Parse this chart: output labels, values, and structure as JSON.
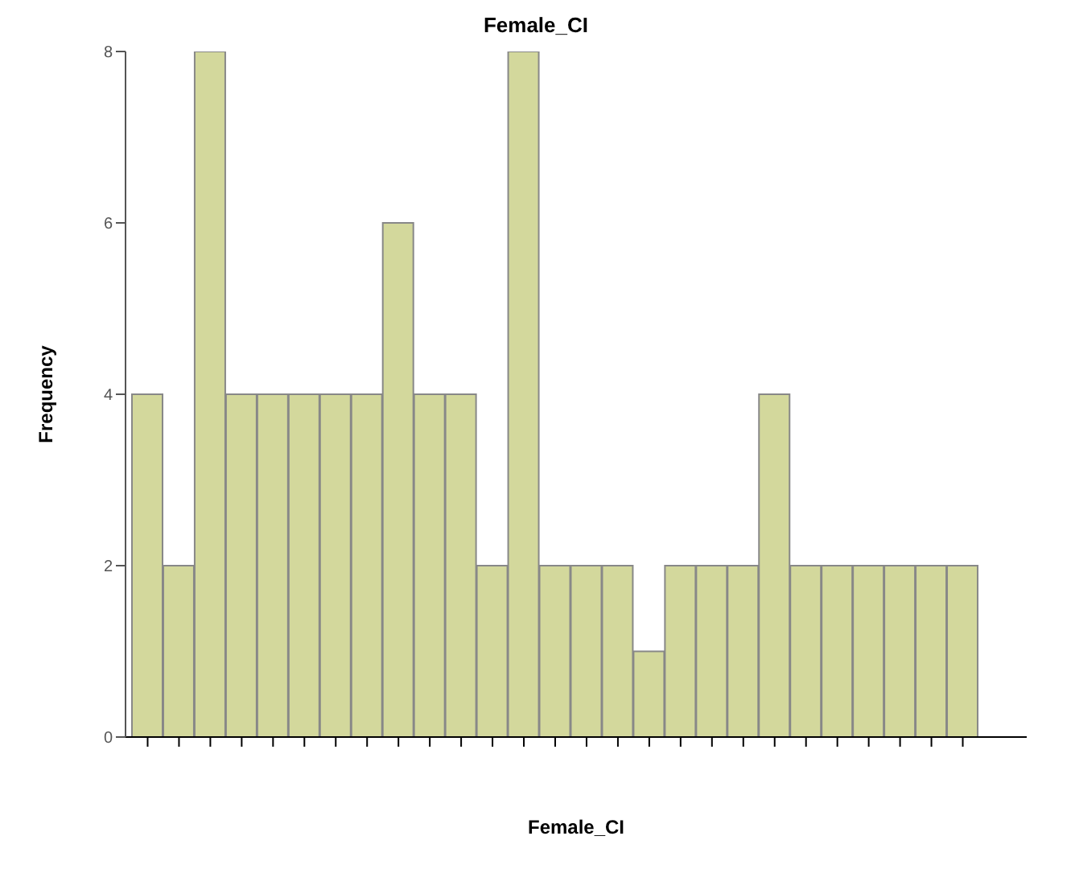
{
  "chart_data": {
    "type": "bar",
    "title": "Female_CI",
    "xlabel": "Female_CI",
    "ylabel": "Frequency",
    "categories": [
      null,
      null,
      null,
      null,
      null,
      null,
      null,
      null,
      null,
      null,
      null,
      null,
      null,
      null,
      null,
      null,
      null,
      null,
      null,
      null,
      null,
      null,
      null,
      null,
      null,
      null,
      null
    ],
    "values": [
      4,
      2,
      8,
      4,
      4,
      4,
      4,
      4,
      6,
      4,
      4,
      2,
      8,
      2,
      2,
      2,
      1,
      2,
      2,
      2,
      4,
      2,
      2,
      2,
      2,
      2,
      2
    ],
    "color": "#d3d89c",
    "ylim": [
      0,
      8
    ],
    "yticks": [
      0,
      2,
      4,
      6,
      8
    ],
    "grid": false
  }
}
